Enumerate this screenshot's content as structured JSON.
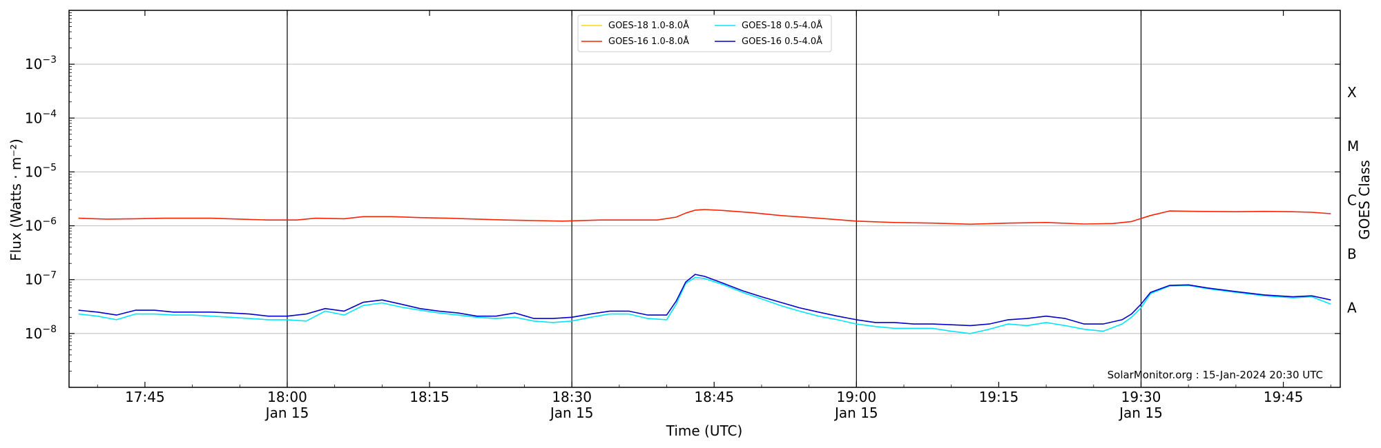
{
  "chart_data": {
    "type": "line",
    "xlabel": "Time (UTC)",
    "ylabel": "Flux (Watts · m⁻²)",
    "y2label": "GOES Class",
    "yscale": "log",
    "ylim": [
      1e-09,
      0.01
    ],
    "xlim": [
      "17:37",
      "19:51"
    ],
    "grid": "horizontal",
    "legend_position": "top-center",
    "watermark": "SolarMonitor.org : 15-Jan-2024 20:30 UTC",
    "y_ticks": [
      {
        "value": 1e-08,
        "base": "10",
        "exp": "−8"
      },
      {
        "value": 1e-07,
        "base": "10",
        "exp": "−7"
      },
      {
        "value": 1e-06,
        "base": "10",
        "exp": "−6"
      },
      {
        "value": 1e-05,
        "base": "10",
        "exp": "−5"
      },
      {
        "value": 0.0001,
        "base": "10",
        "exp": "−4"
      },
      {
        "value": 0.001,
        "base": "10",
        "exp": "−3"
      }
    ],
    "x_ticks": [
      {
        "time": "17:45",
        "date": ""
      },
      {
        "time": "18:00",
        "date": "Jan 15"
      },
      {
        "time": "18:15",
        "date": ""
      },
      {
        "time": "18:30",
        "date": "Jan 15"
      },
      {
        "time": "18:45",
        "date": ""
      },
      {
        "time": "19:00",
        "date": "Jan 15"
      },
      {
        "time": "19:15",
        "date": ""
      },
      {
        "time": "19:30",
        "date": "Jan 15"
      },
      {
        "time": "19:45",
        "date": ""
      }
    ],
    "vlines": [
      "18:00",
      "18:30",
      "19:00",
      "19:30"
    ],
    "goes_classes": [
      {
        "label": "A",
        "value": 3e-08
      },
      {
        "label": "B",
        "value": 3e-07
      },
      {
        "label": "C",
        "value": 3e-06
      },
      {
        "label": "M",
        "value": 3e-05
      },
      {
        "label": "X",
        "value": 0.0003
      }
    ],
    "legend": [
      {
        "name": "GOES-18 1.0-8.0Å",
        "color": "#ffd700"
      },
      {
        "name": "GOES-18 0.5-4.0Å",
        "color": "#00e5ff"
      },
      {
        "name": "GOES-16 1.0-8.0Å",
        "color": "#ff2200"
      },
      {
        "name": "GOES-16 0.5-4.0Å",
        "color": "#0000cc"
      }
    ],
    "series": [
      {
        "name": "GOES-16 1.0-8.0Å",
        "color": "#ff2200",
        "x": [
          "17:38",
          "17:41",
          "17:44",
          "17:47",
          "17:52",
          "17:55",
          "17:58",
          "18:01",
          "18:03",
          "18:06",
          "18:08",
          "18:11",
          "18:14",
          "18:17",
          "18:20",
          "18:23",
          "18:26",
          "18:29",
          "18:33",
          "18:36",
          "18:39",
          "18:41",
          "18:42",
          "18:43",
          "18:44",
          "18:46",
          "18:49",
          "18:52",
          "18:56",
          "19:00",
          "19:04",
          "19:08",
          "19:12",
          "19:16",
          "19:20",
          "19:24",
          "19:27",
          "19:29",
          "19:31",
          "19:33",
          "19:36",
          "19:40",
          "19:43",
          "19:46",
          "19:48",
          "19:50"
        ],
        "y": [
          1.38e-06,
          1.33e-06,
          1.35e-06,
          1.38e-06,
          1.38e-06,
          1.33e-06,
          1.28e-06,
          1.28e-06,
          1.38e-06,
          1.35e-06,
          1.48e-06,
          1.48e-06,
          1.42e-06,
          1.38e-06,
          1.33e-06,
          1.28e-06,
          1.25e-06,
          1.22e-06,
          1.28e-06,
          1.28e-06,
          1.28e-06,
          1.45e-06,
          1.72e-06,
          1.95e-06,
          2e-06,
          1.92e-06,
          1.75e-06,
          1.55e-06,
          1.38e-06,
          1.22e-06,
          1.15e-06,
          1.12e-06,
          1.07e-06,
          1.12e-06,
          1.15e-06,
          1.08e-06,
          1.1e-06,
          1.2e-06,
          1.55e-06,
          1.88e-06,
          1.85e-06,
          1.82e-06,
          1.85e-06,
          1.82e-06,
          1.78e-06,
          1.68e-06
        ]
      },
      {
        "name": "GOES-16 0.5-4.0Å",
        "color": "#0000cc",
        "x": [
          "17:38",
          "17:40",
          "17:42",
          "17:44",
          "17:46",
          "17:48",
          "17:50",
          "17:52",
          "17:54",
          "17:56",
          "17:58",
          "18:00",
          "18:02",
          "18:04",
          "18:06",
          "18:08",
          "18:10",
          "18:12",
          "18:14",
          "18:16",
          "18:18",
          "18:20",
          "18:22",
          "18:24",
          "18:26",
          "18:28",
          "18:30",
          "18:32",
          "18:34",
          "18:36",
          "18:38",
          "18:40",
          "18:41",
          "18:42",
          "18:43",
          "18:44",
          "18:46",
          "18:48",
          "18:50",
          "18:52",
          "18:54",
          "18:56",
          "18:58",
          "19:00",
          "19:02",
          "19:04",
          "19:06",
          "19:08",
          "19:10",
          "19:12",
          "19:14",
          "19:16",
          "19:18",
          "19:20",
          "19:22",
          "19:24",
          "19:26",
          "19:28",
          "19:29",
          "19:30",
          "19:31",
          "19:33",
          "19:35",
          "19:37",
          "19:40",
          "19:43",
          "19:46",
          "19:48",
          "19:50"
        ],
        "y": [
          2.7e-08,
          2.5e-08,
          2.2e-08,
          2.7e-08,
          2.7e-08,
          2.5e-08,
          2.5e-08,
          2.5e-08,
          2.4e-08,
          2.3e-08,
          2.1e-08,
          2.1e-08,
          2.3e-08,
          2.9e-08,
          2.6e-08,
          3.8e-08,
          4.2e-08,
          3.5e-08,
          2.9e-08,
          2.6e-08,
          2.4e-08,
          2.1e-08,
          2.1e-08,
          2.4e-08,
          1.9e-08,
          1.9e-08,
          2e-08,
          2.3e-08,
          2.6e-08,
          2.6e-08,
          2.2e-08,
          2.2e-08,
          4e-08,
          9e-08,
          1.25e-07,
          1.15e-07,
          8.5e-08,
          6.2e-08,
          4.8e-08,
          3.8e-08,
          3e-08,
          2.5e-08,
          2.1e-08,
          1.8e-08,
          1.6e-08,
          1.6e-08,
          1.5e-08,
          1.5e-08,
          1.45e-08,
          1.4e-08,
          1.5e-08,
          1.8e-08,
          1.9e-08,
          2.1e-08,
          1.9e-08,
          1.5e-08,
          1.5e-08,
          1.8e-08,
          2.3e-08,
          3.5e-08,
          5.8e-08,
          7.8e-08,
          8e-08,
          7e-08,
          6e-08,
          5.2e-08,
          4.8e-08,
          5e-08,
          4.2e-08
        ]
      },
      {
        "name": "GOES-18 0.5-4.0Å",
        "color": "#00e5ff",
        "x": [
          "17:38",
          "17:40",
          "17:42",
          "17:44",
          "17:46",
          "17:48",
          "17:50",
          "17:52",
          "17:54",
          "17:56",
          "17:58",
          "18:00",
          "18:02",
          "18:04",
          "18:06",
          "18:08",
          "18:10",
          "18:12",
          "18:14",
          "18:16",
          "18:18",
          "18:20",
          "18:22",
          "18:24",
          "18:26",
          "18:28",
          "18:30",
          "18:32",
          "18:34",
          "18:36",
          "18:38",
          "18:40",
          "18:41",
          "18:42",
          "18:43",
          "18:44",
          "18:46",
          "18:48",
          "18:50",
          "18:52",
          "18:54",
          "18:56",
          "18:58",
          "19:00",
          "19:02",
          "19:04",
          "19:06",
          "19:08",
          "19:10",
          "19:12",
          "19:14",
          "19:16",
          "19:18",
          "19:20",
          "19:22",
          "19:24",
          "19:26",
          "19:28",
          "19:29",
          "19:30",
          "19:31",
          "19:33",
          "19:35",
          "19:37",
          "19:40",
          "19:43",
          "19:46",
          "19:48",
          "19:50"
        ],
        "y": [
          2.3e-08,
          2.1e-08,
          1.8e-08,
          2.3e-08,
          2.3e-08,
          2.2e-08,
          2.2e-08,
          2.1e-08,
          2e-08,
          1.9e-08,
          1.8e-08,
          1.8e-08,
          1.7e-08,
          2.6e-08,
          2.2e-08,
          3.3e-08,
          3.7e-08,
          3.1e-08,
          2.7e-08,
          2.4e-08,
          2.2e-08,
          2e-08,
          1.9e-08,
          2e-08,
          1.7e-08,
          1.6e-08,
          1.7e-08,
          2e-08,
          2.3e-08,
          2.3e-08,
          1.9e-08,
          1.8e-08,
          3.5e-08,
          8.5e-08,
          1.1e-07,
          1.05e-07,
          8e-08,
          5.8e-08,
          4.4e-08,
          3.3e-08,
          2.6e-08,
          2.1e-08,
          1.8e-08,
          1.5e-08,
          1.35e-08,
          1.25e-08,
          1.25e-08,
          1.25e-08,
          1.1e-08,
          1e-08,
          1.2e-08,
          1.5e-08,
          1.4e-08,
          1.6e-08,
          1.4e-08,
          1.2e-08,
          1.1e-08,
          1.5e-08,
          2e-08,
          3e-08,
          5.5e-08,
          7.6e-08,
          7.8e-08,
          6.8e-08,
          5.8e-08,
          5e-08,
          4.6e-08,
          4.8e-08,
          3.5e-08
        ]
      }
    ]
  }
}
